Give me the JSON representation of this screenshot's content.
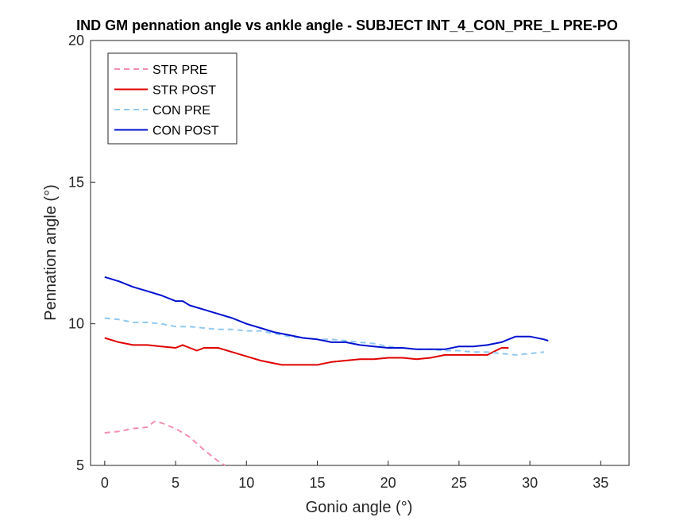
{
  "chart_data": {
    "type": "line",
    "title": "IND GM pennation angle vs ankle angle - SUBJECT INT_4_CON_PRE_L PRE-PO",
    "xlabel": "Gonio angle (°)",
    "ylabel": "Pennation angle (°)",
    "xlim": [
      -1,
      37
    ],
    "ylim": [
      5,
      20
    ],
    "xticks": [
      0,
      5,
      10,
      15,
      20,
      25,
      30,
      35
    ],
    "yticks": [
      5,
      10,
      15,
      20
    ],
    "xtick_labels": [
      "0",
      "5",
      "10",
      "15",
      "20",
      "25",
      "30",
      "35"
    ],
    "ytick_labels": [
      "5",
      "10",
      "15",
      "20"
    ],
    "grid": false,
    "legend_position": "top-left",
    "series": [
      {
        "name": "STR PRE",
        "color": "#f48fb1",
        "style": "dashed",
        "x": [
          0,
          1,
          2,
          3,
          3.5,
          4,
          5,
          6,
          7,
          7.5,
          8,
          8.5
        ],
        "y": [
          6.15,
          6.2,
          6.3,
          6.35,
          6.55,
          6.5,
          6.3,
          6.0,
          5.55,
          5.35,
          5.15,
          5.0
        ]
      },
      {
        "name": "STR POST",
        "color": "#e00000",
        "style": "solid",
        "x": [
          0,
          1,
          2,
          3,
          4,
          5,
          5.5,
          6,
          6.5,
          7,
          8,
          9,
          10,
          11,
          12,
          12.5,
          13,
          14,
          15,
          16,
          17,
          18,
          19,
          20,
          21,
          22,
          23,
          24,
          25,
          26,
          27,
          28,
          28.5
        ],
        "y": [
          9.5,
          9.35,
          9.25,
          9.25,
          9.2,
          9.15,
          9.25,
          9.15,
          9.05,
          9.15,
          9.15,
          9.0,
          8.85,
          8.7,
          8.6,
          8.55,
          8.55,
          8.55,
          8.55,
          8.65,
          8.7,
          8.75,
          8.75,
          8.8,
          8.8,
          8.75,
          8.8,
          8.9,
          8.9,
          8.9,
          8.9,
          9.15,
          9.15
        ]
      },
      {
        "name": "CON PRE",
        "color": "#90c8f0",
        "style": "dashed",
        "x": [
          0,
          1,
          2,
          3,
          4,
          5,
          6,
          7,
          8,
          9,
          10,
          11,
          12,
          13,
          14,
          15,
          16,
          17,
          18,
          19,
          20,
          21,
          22,
          23,
          24,
          25,
          26,
          27,
          28,
          29,
          30,
          31
        ],
        "y": [
          10.2,
          10.15,
          10.05,
          10.05,
          10.0,
          9.9,
          9.9,
          9.85,
          9.8,
          9.8,
          9.75,
          9.75,
          9.65,
          9.55,
          9.5,
          9.45,
          9.45,
          9.4,
          9.35,
          9.3,
          9.2,
          9.15,
          9.1,
          9.1,
          9.05,
          9.05,
          9.0,
          9.0,
          8.95,
          8.9,
          8.95,
          9.0
        ]
      },
      {
        "name": "CON POST",
        "color": "#0010d0",
        "style": "solid",
        "x": [
          0,
          1,
          2,
          3,
          4,
          5,
          5.5,
          6,
          7,
          8,
          9,
          10,
          11,
          12,
          13,
          14,
          15,
          16,
          17,
          18,
          19,
          20,
          21,
          22,
          23,
          24,
          25,
          26,
          27,
          28,
          29,
          30,
          31,
          31.3
        ],
        "y": [
          11.65,
          11.5,
          11.3,
          11.15,
          11.0,
          10.8,
          10.8,
          10.65,
          10.5,
          10.35,
          10.2,
          10.0,
          9.85,
          9.7,
          9.6,
          9.5,
          9.45,
          9.35,
          9.35,
          9.25,
          9.2,
          9.15,
          9.15,
          9.1,
          9.1,
          9.1,
          9.2,
          9.2,
          9.25,
          9.35,
          9.55,
          9.55,
          9.45,
          9.4
        ]
      }
    ]
  }
}
